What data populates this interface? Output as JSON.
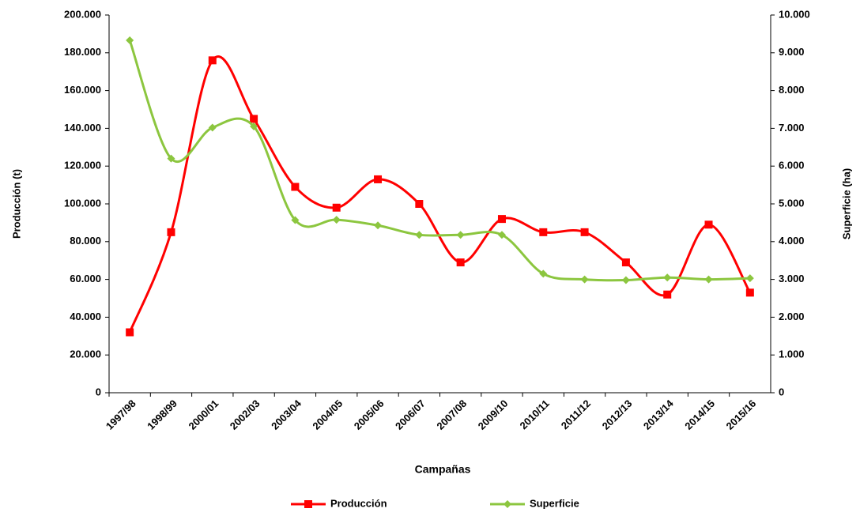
{
  "chart_data": {
    "type": "line",
    "categories": [
      "1997/98",
      "1998/99",
      "2000/01",
      "2002/03",
      "2003/04",
      "2004/05",
      "2005/06",
      "2006/07",
      "2007/08",
      "2009/10",
      "2010/11",
      "2011/12",
      "2012/13",
      "2013/14",
      "2014/15",
      "2015/16"
    ],
    "series": [
      {
        "name": "Producción",
        "color": "#ff0000",
        "marker": "square",
        "values": [
          32000,
          85000,
          176000,
          145000,
          109000,
          98000,
          113000,
          100000,
          69000,
          92000,
          85000,
          85000,
          69000,
          52000,
          89000,
          53000
        ]
      },
      {
        "name": "Superficie",
        "color": "#8cc63f",
        "marker": "diamond",
        "axis": "y2",
        "values": [
          9330,
          6200,
          7020,
          7050,
          4570,
          4580,
          4430,
          4180,
          4180,
          4180,
          3150,
          3000,
          2980,
          3050,
          3000,
          3030
        ]
      }
    ],
    "xlabel": "Campañas",
    "ylabel": "Producción (t)",
    "y2label": "Superficie (ha)",
    "ylim": [
      0,
      200000
    ],
    "yticks": [
      0,
      {
        "value": 20000,
        "label": "20.000"
      },
      {
        "value": 40000,
        "label": "40.000"
      },
      {
        "value": 60000,
        "label": "60.000"
      },
      {
        "value": 80000,
        "label": "80.000"
      },
      {
        "value": 100000,
        "label": "100.000"
      },
      {
        "value": 120000,
        "label": "120.000"
      },
      {
        "value": 140000,
        "label": "140.000"
      },
      {
        "value": 160000,
        "label": "160.000"
      },
      {
        "value": 180000,
        "label": "180.000"
      },
      {
        "value": 200000,
        "label": "200.000"
      }
    ],
    "y2lim": [
      0,
      10000
    ],
    "y2ticks": [
      0,
      {
        "value": 1000,
        "label": "1.000"
      },
      {
        "value": 2000,
        "label": "2.000"
      },
      {
        "value": 3000,
        "label": "3.000"
      },
      {
        "value": 4000,
        "label": "4.000"
      },
      {
        "value": 5000,
        "label": "5.000"
      },
      {
        "value": 6000,
        "label": "6.000"
      },
      {
        "value": 7000,
        "label": "7.000"
      },
      {
        "value": 8000,
        "label": "8.000"
      },
      {
        "value": 9000,
        "label": "9.000"
      },
      {
        "value": 10000,
        "label": "10.000"
      }
    ],
    "grid": false,
    "legend": "bottom"
  }
}
